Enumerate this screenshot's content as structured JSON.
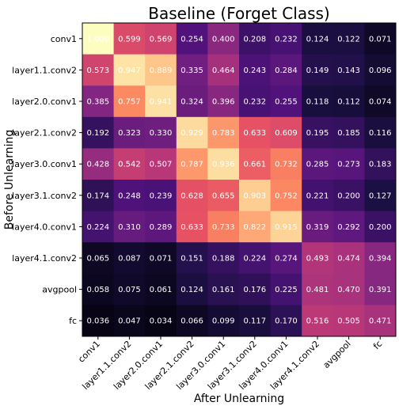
{
  "chart_data": {
    "type": "heatmap",
    "title": "Baseline (Forget Class)",
    "xlabel": "After Unlearning",
    "ylabel": "Before Unlearning",
    "x_categories": [
      "conv1",
      "layer1.1.conv2",
      "layer2.0.conv1",
      "layer2.1.conv2",
      "layer3.0.conv1",
      "layer3.1.conv2",
      "layer4.0.conv1",
      "layer4.1.conv2",
      "avgpool",
      "fc"
    ],
    "y_categories": [
      "conv1",
      "layer1.1.conv2",
      "layer2.0.conv1",
      "layer2.1.conv2",
      "layer3.0.conv1",
      "layer3.1.conv2",
      "layer4.0.conv1",
      "layer4.1.conv2",
      "avgpool",
      "fc"
    ],
    "values": [
      [
        1.0,
        0.599,
        0.569,
        0.254,
        0.4,
        0.208,
        0.232,
        0.124,
        0.122,
        0.071
      ],
      [
        0.573,
        0.947,
        0.889,
        0.335,
        0.464,
        0.243,
        0.284,
        0.149,
        0.143,
        0.096
      ],
      [
        0.385,
        0.757,
        0.941,
        0.324,
        0.396,
        0.232,
        0.255,
        0.118,
        0.112,
        0.074
      ],
      [
        0.192,
        0.323,
        0.33,
        0.929,
        0.783,
        0.633,
        0.609,
        0.195,
        0.185,
        0.116
      ],
      [
        0.428,
        0.542,
        0.507,
        0.787,
        0.936,
        0.661,
        0.732,
        0.285,
        0.273,
        0.183
      ],
      [
        0.174,
        0.248,
        0.239,
        0.628,
        0.655,
        0.903,
        0.752,
        0.221,
        0.2,
        0.127
      ],
      [
        0.224,
        0.31,
        0.289,
        0.633,
        0.733,
        0.822,
        0.915,
        0.319,
        0.292,
        0.2
      ],
      [
        0.065,
        0.087,
        0.071,
        0.151,
        0.188,
        0.224,
        0.274,
        0.493,
        0.474,
        0.394
      ],
      [
        0.058,
        0.075,
        0.061,
        0.124,
        0.161,
        0.176,
        0.225,
        0.481,
        0.47,
        0.391
      ],
      [
        0.036,
        0.047,
        0.034,
        0.066,
        0.099,
        0.117,
        0.17,
        0.516,
        0.505,
        0.471
      ]
    ],
    "display_labels": [
      [
        "1.000",
        "0.599",
        "0.569",
        "0.254",
        "0.400",
        "0.208",
        "0.232",
        "0.124",
        "0.122",
        "0.071"
      ],
      [
        "0.573",
        "0.947",
        "0.889",
        "0.335",
        "0.464",
        "0.243",
        "0.284",
        "0.149",
        "0.143",
        "0.096"
      ],
      [
        "0.385",
        "0.757",
        "0.941",
        "0.324",
        "0.396",
        "0.232",
        "0.255",
        "0.118",
        "0.112",
        "0.074"
      ],
      [
        "0.192",
        "0.323",
        "0.330",
        "0.929",
        "0.783",
        "0.633",
        "0.609",
        "0.195",
        "0.185",
        "0.116"
      ],
      [
        "0.428",
        "0.542",
        "0.507",
        "0.787",
        "0.936",
        "0.661",
        "0.732",
        "0.285",
        "0.273",
        "0.183"
      ],
      [
        "0.174",
        "0.248",
        "0.239",
        "0.628",
        "0.655",
        "0.903",
        "0.752",
        "0.221",
        "0.200",
        "0.127"
      ],
      [
        "0.224",
        "0.310",
        "0.289",
        "0.633",
        "0.733",
        "0.822",
        "0.915",
        "0.319",
        "0.292",
        "0.200"
      ],
      [
        "0.065",
        "0.087",
        "0.071",
        "0.151",
        "0.188",
        "0.224",
        "0.274",
        "0.493",
        "0.474",
        "0.394"
      ],
      [
        "0.058",
        "0.075",
        "0.061",
        "0.124",
        "0.161",
        "0.176",
        "0.225",
        "0.481",
        "0.470",
        "0.391"
      ],
      [
        "0.036",
        "0.047",
        "0.034",
        "0.066",
        "0.099",
        "0.117",
        "0.170",
        "0.516",
        "0.505",
        "0.471"
      ]
    ],
    "colormap": "magma",
    "value_range": [
      0,
      1
    ],
    "grid": false
  }
}
